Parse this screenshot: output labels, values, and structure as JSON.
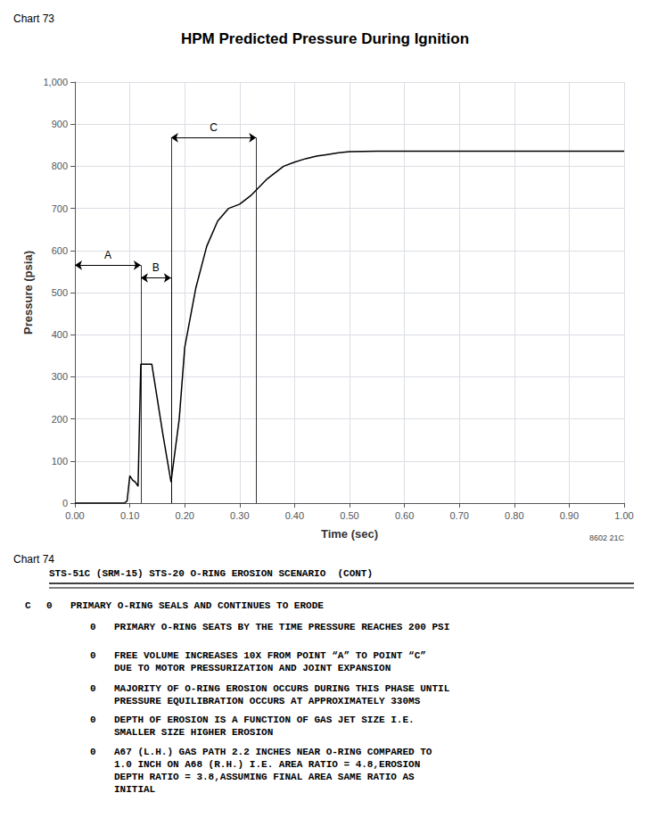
{
  "chart_data": {
    "type": "line",
    "title": "HPM Predicted Pressure During Ignition",
    "label": "Chart 73",
    "xlabel": "Time (sec)",
    "ylabel": "Pressure (psia)",
    "x": [
      0.0,
      0.09,
      0.095,
      0.1,
      0.105,
      0.11,
      0.115,
      0.12,
      0.14,
      0.16,
      0.175,
      0.19,
      0.2,
      0.22,
      0.24,
      0.26,
      0.28,
      0.3,
      0.32,
      0.35,
      0.38,
      0.4,
      0.42,
      0.44,
      0.46,
      0.48,
      0.5,
      0.55,
      0.6,
      0.7,
      0.8,
      0.9,
      1.0
    ],
    "values": [
      0,
      0,
      5,
      65,
      55,
      50,
      40,
      330,
      330,
      165,
      50,
      200,
      370,
      510,
      610,
      670,
      700,
      710,
      730,
      770,
      800,
      810,
      818,
      824,
      828,
      832,
      835,
      836,
      836,
      836,
      836,
      836,
      836
    ],
    "color": "#000000",
    "xlim": [
      0.0,
      1.0
    ],
    "ylim": [
      0,
      1000
    ],
    "xticks": [
      {
        "value": 0.0,
        "label": "0.00"
      },
      {
        "value": 0.1,
        "label": "0.10"
      },
      {
        "value": 0.2,
        "label": "0.20"
      },
      {
        "value": 0.3,
        "label": "0.30"
      },
      {
        "value": 0.4,
        "label": "0.40"
      },
      {
        "value": 0.5,
        "label": "0.50"
      },
      {
        "value": 0.6,
        "label": "0.60"
      },
      {
        "value": 0.7,
        "label": "0.70"
      },
      {
        "value": 0.8,
        "label": "0.80"
      },
      {
        "value": 0.9,
        "label": "0.90"
      },
      {
        "value": 1.0,
        "label": "1.00"
      }
    ],
    "yticks": [
      0,
      100,
      200,
      300,
      400,
      500,
      600,
      700,
      800,
      900,
      {
        "value": 1000,
        "label": "1,000"
      }
    ],
    "grid": true,
    "annotations": [
      {
        "label": "A",
        "x_start": 0.0,
        "x_end": 0.12,
        "y": 565,
        "drop_lines": [
          0.12
        ]
      },
      {
        "label": "B",
        "x_start": 0.12,
        "x_end": 0.175,
        "y": 535,
        "drop_lines": [
          0.175
        ]
      },
      {
        "label": "C",
        "x_start": 0.175,
        "x_end": 0.33,
        "y": 868,
        "drop_lines": [
          0.175,
          0.33
        ]
      }
    ],
    "footnote": "8602 21C"
  },
  "text_block": {
    "label": "Chart 74",
    "heading": "STS-51C (SRM-15) STS-20 O-RING EROSION SCENARIO  (CONT)",
    "main_markers": [
      "C",
      "0"
    ],
    "main_text": "PRIMARY O-RING SEALS AND CONTINUES TO ERODE",
    "sub_marker": "0",
    "bullets": [
      "PRIMARY O-RING SEATS BY THE TIME PRESSURE REACHES 200 PSI",
      "FREE VOLUME INCREASES 10X FROM POINT “A” TO POINT “C”\nDUE TO MOTOR PRESSURIZATION AND JOINT EXPANSION",
      "MAJORITY OF O-RING EROSION OCCURS DURING THIS PHASE UNTIL\nPRESSURE EQUILIBRATION OCCURS AT APPROXIMATELY 330MS",
      "DEPTH OF EROSION IS A FUNCTION OF GAS JET SIZE I.E.\nSMALLER SIZE HIGHER EROSION",
      "A67 (L.H.) GAS PATH 2.2 INCHES NEAR O-RING COMPARED TO\n1.0 INCH ON A68 (R.H.) I.E. AREA RATIO = 4.8,EROSION\nDEPTH RATIO = 3.8,ASSUMING FINAL AREA SAME RATIO AS\nINITIAL"
    ]
  }
}
